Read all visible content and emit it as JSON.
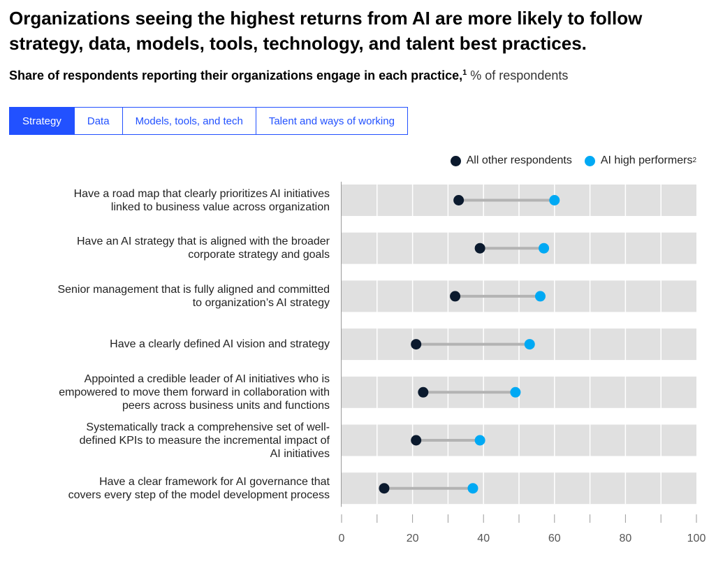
{
  "title": "Organizations seeing the highest returns from AI are more likely to follow strategy, data, models, tools, technology, and talent best practices.",
  "subtitle": {
    "main": "Share of respondents reporting their organizations engage in each practice,",
    "footnote": "1",
    "unit": " % of respondents"
  },
  "tabs": [
    {
      "label": "Strategy",
      "active": true
    },
    {
      "label": "Data",
      "active": false
    },
    {
      "label": "Models, tools, and tech",
      "active": false
    },
    {
      "label": "Talent and ways of working",
      "active": false
    }
  ],
  "colors": {
    "other": "#0b1a2e",
    "high": "#00a9f4",
    "band": "#e0e0e0",
    "connector": "#b3b3b3",
    "accent": "#2251ff"
  },
  "chart_data": {
    "type": "dumbbell",
    "xlim": [
      0,
      100
    ],
    "xticks": [
      0,
      20,
      40,
      60,
      80,
      100
    ],
    "legend_placement": "top-right",
    "legend": [
      {
        "name": "All other respondents",
        "footnote": ""
      },
      {
        "name": "AI high performers",
        "footnote": "2"
      }
    ],
    "categories": [
      [
        "Have a road map that clearly prioritizes AI initiatives",
        "linked to business value across organization"
      ],
      [
        "Have an AI strategy that is aligned with the broader",
        "corporate strategy and goals"
      ],
      [
        "Senior management that is fully aligned and committed",
        "to organization’s AI strategy"
      ],
      [
        "Have a clearly defined AI vision and strategy"
      ],
      [
        "Appointed a credible leader of AI initiatives who is",
        "empowered to move them forward in collaboration with",
        "peers across business units and functions"
      ],
      [
        "Systematically track a comprehensive set of well-",
        "defined KPIs to measure the incremental impact of",
        "AI initiatives"
      ],
      [
        "Have a clear framework for AI governance that",
        "covers every step of the model development process"
      ]
    ],
    "series": [
      {
        "name": "All other respondents",
        "values": [
          33,
          39,
          32,
          21,
          23,
          21,
          12
        ]
      },
      {
        "name": "AI high performers",
        "values": [
          60,
          57,
          56,
          53,
          49,
          39,
          37
        ]
      }
    ]
  }
}
